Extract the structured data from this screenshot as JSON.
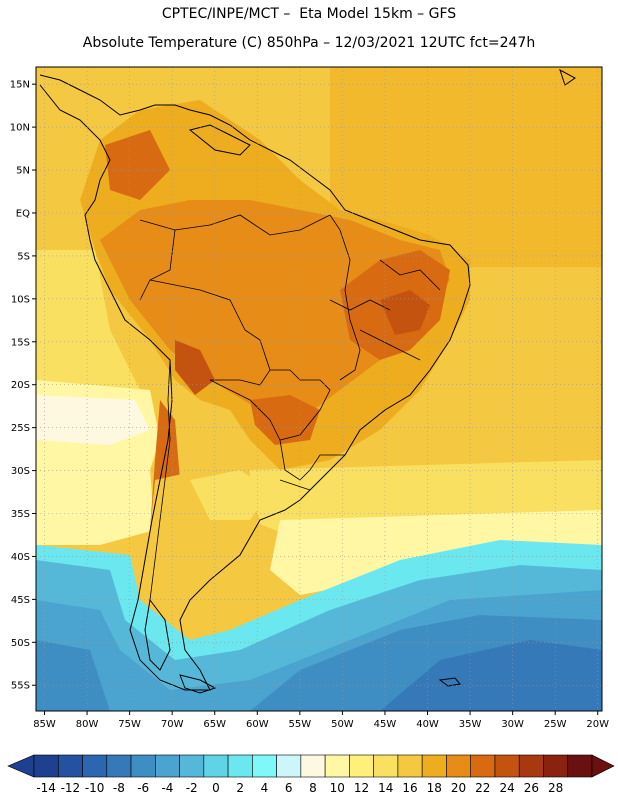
{
  "header": {
    "title_line1": "CPTEC/INPE/MCT –  Eta Model 15km – GFS",
    "title_line2": "Absolute Temperature (C) 850hPa – 12/03/2021 12UTC fct=247h"
  },
  "axes": {
    "lat_labels": [
      "15N",
      "10N",
      "5N",
      "EQ",
      "5S",
      "10S",
      "15S",
      "20S",
      "25S",
      "30S",
      "35S",
      "40S",
      "45S",
      "50S",
      "55S"
    ],
    "lat_values": [
      15,
      10,
      5,
      0,
      -5,
      -10,
      -15,
      -20,
      -25,
      -30,
      -35,
      -40,
      -45,
      -50,
      -55
    ],
    "lon_labels": [
      "85W",
      "80W",
      "75W",
      "70W",
      "65W",
      "60W",
      "55W",
      "50W",
      "45W",
      "40W",
      "35W",
      "30W",
      "25W",
      "20W"
    ],
    "lon_values": [
      -85,
      -80,
      -75,
      -70,
      -65,
      -60,
      -55,
      -50,
      -45,
      -40,
      -35,
      -30,
      -25,
      -20
    ],
    "lon_range": [
      -86,
      -19.5
    ],
    "lat_range": [
      -58,
      17
    ]
  },
  "colorbar": {
    "labels": [
      "-14",
      "-12",
      "-10",
      "-8",
      "-6",
      "-4",
      "-2",
      "0",
      "2",
      "4",
      "6",
      "8",
      "10",
      "12",
      "14",
      "16",
      "18",
      "20",
      "22",
      "24",
      "26",
      "28"
    ],
    "colors": [
      "#1f3f8f",
      "#2552a0",
      "#2c65b0",
      "#3679b8",
      "#3f8ec3",
      "#4aa4cf",
      "#55b8d8",
      "#5fd4e6",
      "#6be8ef",
      "#7ef8f8",
      "#ccf6fa",
      "#fff8e0",
      "#fff7a3",
      "#fff07a",
      "#fae061",
      "#f5c842",
      "#eead1e",
      "#e68c17",
      "#d86a12",
      "#c45310",
      "#a8380e",
      "#8a2210",
      "#6b1010"
    ],
    "under_color": "#1f3f8f",
    "over_color": "#6b1010"
  },
  "chart_data": {
    "type": "heatmap",
    "title": "Absolute Temperature (C) 850hPa – 12/03/2021 12UTC fct=247h",
    "xlabel": "",
    "ylabel": "",
    "x_range": [
      -86,
      -19.5
    ],
    "y_range": [
      -58,
      17
    ],
    "x_ticks": [
      "85W",
      "80W",
      "75W",
      "70W",
      "65W",
      "60W",
      "55W",
      "50W",
      "45W",
      "40W",
      "35W",
      "30W",
      "25W",
      "20W"
    ],
    "y_ticks": [
      "15N",
      "10N",
      "5N",
      "EQ",
      "5S",
      "10S",
      "15S",
      "20S",
      "25S",
      "30S",
      "35S",
      "40S",
      "45S",
      "50S",
      "55S"
    ],
    "levels": [
      -14,
      -12,
      -10,
      -8,
      -6,
      -4,
      -2,
      0,
      2,
      4,
      6,
      8,
      10,
      12,
      14,
      16,
      18,
      20,
      22,
      24,
      26,
      28
    ],
    "grid": true
  }
}
